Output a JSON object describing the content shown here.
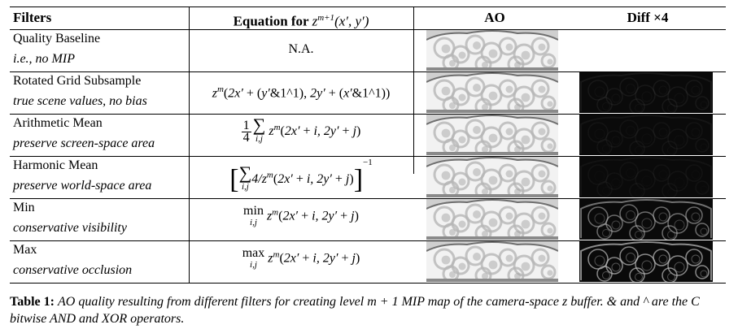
{
  "table": {
    "headers": {
      "filters": "Filters",
      "equation": "Equation for z^{m+1}(x′, y′)",
      "equation_prefix": "Equation for ",
      "equation_math": "z",
      "equation_sup": "m+1",
      "equation_args": "(x′, y′)",
      "ao": "AO",
      "diff": "Diff ×4"
    },
    "rows": [
      {
        "name": "Quality Baseline",
        "note": "i.e., no MIP",
        "equation": "N.A."
      },
      {
        "name": "Rotated Grid Subsample",
        "note": "true scene values, no bias",
        "equation": "z^m(2x′ + (y′&1^1), 2y′ + (x′&1^1))"
      },
      {
        "name": "Arithmetic Mean",
        "note": "preserve screen-space area",
        "equation": "1/4 Σ_{i,j} z^m(2x′ + i, 2y′ + j)"
      },
      {
        "name": "Harmonic Mean",
        "note": "preserve world-space area",
        "equation": "[Σ_{i,j} 4/z^m(2x′ + i, 2y′ + j)]^{−1}"
      },
      {
        "name": "Min",
        "note": "conservative visibility",
        "equation": "min_{i,j} z^m(2x′ + i, 2y′ + j)"
      },
      {
        "name": "Max",
        "note": "conservative occlusion",
        "equation": "max_{i,j} z^m(2x′ + i, 2y′ + j)"
      }
    ]
  },
  "caption": {
    "label": "Table 1:",
    "text": "AO quality resulting from different filters for creating level m + 1 MIP map of the camera-space z buffer. & and ^ are the C bitwise AND and XOR operators."
  },
  "colors": {
    "ao_light": "#f2f2f2",
    "ao_mid": "#b5b5b5",
    "diff_bg": "#0a0a0a",
    "diff_bright": "#9a9a9a"
  }
}
